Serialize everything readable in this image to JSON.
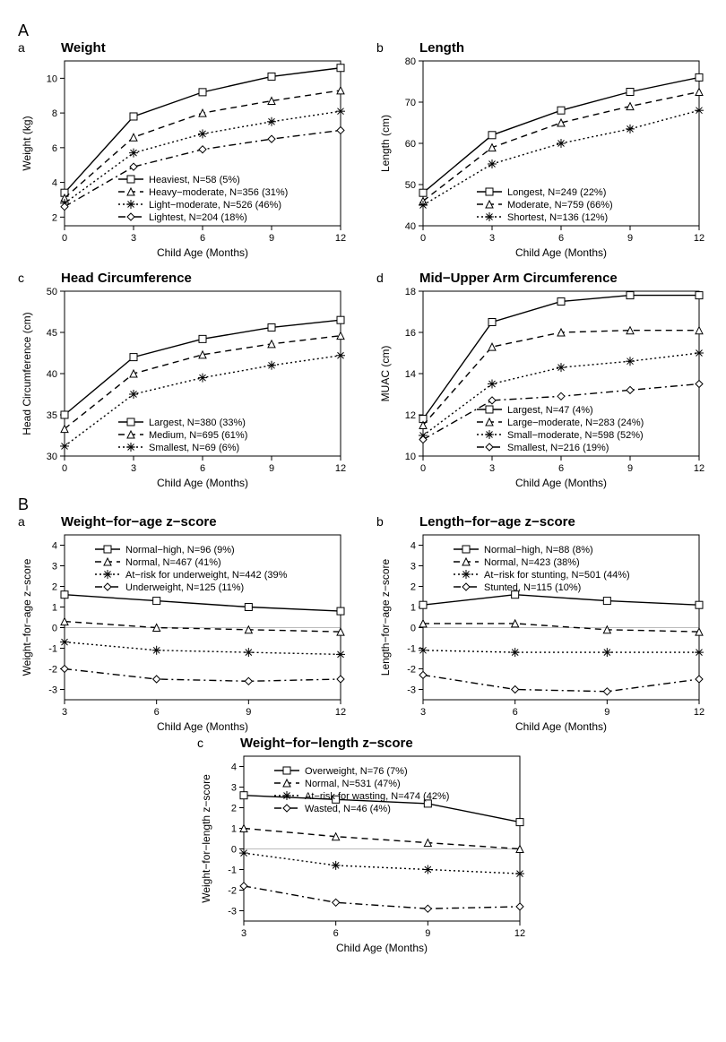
{
  "figure": {
    "sections": {
      "A_label": "A",
      "B_label": "B"
    }
  },
  "common": {
    "x_label": "Child Age (Months)",
    "axis_color": "#000000",
    "grid_color": "#bbbbbb",
    "line_color": "#000000",
    "tick_fontsize": 11,
    "axis_title_fontsize": 12,
    "title_fontsize": 15,
    "line_width": 1.4,
    "dash_patterns": {
      "solid": "",
      "dashed": "7 5",
      "dotted": "2 3",
      "dashdot": "8 4 2 4"
    },
    "markers": {
      "square": "square",
      "triangle": "triangle",
      "star": "star",
      "diamond": "diamond"
    }
  },
  "panels": {
    "Aa": {
      "letter": "a",
      "title": "Weight",
      "y_label": "Weight (kg)",
      "x": [
        0,
        3,
        6,
        9,
        12
      ],
      "xlim": [
        0,
        12
      ],
      "ylim": [
        1.5,
        11
      ],
      "yticks": [
        2,
        4,
        6,
        8,
        10
      ],
      "legend_pos": "bottom-right",
      "series": [
        {
          "label": "Heaviest, N=58 (5%)",
          "dash": "solid",
          "marker": "square",
          "y": [
            3.4,
            7.8,
            9.2,
            10.1,
            10.6
          ]
        },
        {
          "label": "Heavy−moderate, N=356 (31%)",
          "dash": "dashed",
          "marker": "triangle",
          "y": [
            3.1,
            6.6,
            8.0,
            8.7,
            9.3
          ]
        },
        {
          "label": "Light−moderate, N=526 (46%)",
          "dash": "dotted",
          "marker": "star",
          "y": [
            2.8,
            5.7,
            6.8,
            7.5,
            8.1
          ]
        },
        {
          "label": "Lightest, N=204 (18%)",
          "dash": "dashdot",
          "marker": "diamond",
          "y": [
            2.6,
            4.9,
            5.9,
            6.5,
            7.0
          ]
        }
      ]
    },
    "Ab": {
      "letter": "b",
      "title": "Length",
      "y_label": "Length (cm)",
      "x": [
        0,
        3,
        6,
        9,
        12
      ],
      "xlim": [
        0,
        12
      ],
      "ylim": [
        40,
        80
      ],
      "yticks": [
        40,
        50,
        60,
        70,
        80
      ],
      "legend_pos": "bottom-right",
      "series": [
        {
          "label": "Longest, N=249 (22%)",
          "dash": "solid",
          "marker": "square",
          "y": [
            48,
            62,
            68,
            72.5,
            76
          ]
        },
        {
          "label": "Moderate, N=759 (66%)",
          "dash": "dashed",
          "marker": "triangle",
          "y": [
            46,
            59,
            65,
            69,
            72.5
          ]
        },
        {
          "label": "Shortest, N=136 (12%)",
          "dash": "dotted",
          "marker": "star",
          "y": [
            45,
            55,
            60,
            63.5,
            68
          ]
        }
      ]
    },
    "Ac": {
      "letter": "c",
      "title": "Head Circumference",
      "y_label": "Head Circumference (cm)",
      "x": [
        0,
        3,
        6,
        9,
        12
      ],
      "xlim": [
        0,
        12
      ],
      "ylim": [
        30,
        50
      ],
      "yticks": [
        30,
        35,
        40,
        45,
        50
      ],
      "legend_pos": "bottom-right",
      "series": [
        {
          "label": "Largest, N=380 (33%)",
          "dash": "solid",
          "marker": "square",
          "y": [
            35,
            42,
            44.2,
            45.6,
            46.5
          ]
        },
        {
          "label": "Medium, N=695 (61%)",
          "dash": "dashed",
          "marker": "triangle",
          "y": [
            33.3,
            40,
            42.3,
            43.6,
            44.6
          ]
        },
        {
          "label": "Smallest, N=69 (6%)",
          "dash": "dotted",
          "marker": "star",
          "y": [
            31.2,
            37.5,
            39.5,
            41,
            42.2
          ]
        }
      ]
    },
    "Ad": {
      "letter": "d",
      "title": "Mid−Upper Arm Circumference",
      "y_label": "MUAC (cm)",
      "x": [
        0,
        3,
        6,
        9,
        12
      ],
      "xlim": [
        0,
        12
      ],
      "ylim": [
        10,
        18
      ],
      "yticks": [
        10,
        12,
        14,
        16,
        18
      ],
      "legend_pos": "bottom-right",
      "series": [
        {
          "label": "Largest, N=47 (4%)",
          "dash": "solid",
          "marker": "square",
          "y": [
            11.8,
            16.5,
            17.5,
            17.8,
            17.8
          ]
        },
        {
          "label": "Large−moderate, N=283 (24%)",
          "dash": "dashed",
          "marker": "triangle",
          "y": [
            11.5,
            15.3,
            16.0,
            16.1,
            16.1
          ]
        },
        {
          "label": "Small−moderate, N=598 (52%)",
          "dash": "dotted",
          "marker": "star",
          "y": [
            11.0,
            13.5,
            14.3,
            14.6,
            15.0
          ]
        },
        {
          "label": "Smallest, N=216 (19%)",
          "dash": "dashdot",
          "marker": "diamond",
          "y": [
            10.8,
            12.7,
            12.9,
            13.2,
            13.5
          ]
        }
      ]
    },
    "Ba": {
      "letter": "a",
      "title": "Weight−for−age z−score",
      "y_label": "Weight−for−age z−score",
      "x": [
        3,
        6,
        9,
        12
      ],
      "xlim": [
        3,
        12
      ],
      "ylim": [
        -3.5,
        4.5
      ],
      "yticks": [
        -3,
        -2,
        -1,
        0,
        1,
        2,
        3,
        4
      ],
      "zero_line": true,
      "legend_pos": "top-right",
      "series": [
        {
          "label": "Normal−high, N=96 (9%)",
          "dash": "solid",
          "marker": "square",
          "y": [
            1.6,
            1.3,
            1.0,
            0.8
          ]
        },
        {
          "label": "Normal, N=467 (41%)",
          "dash": "dashed",
          "marker": "triangle",
          "y": [
            0.3,
            0.0,
            -0.1,
            -0.2
          ]
        },
        {
          "label": "At−risk for underweight, N=442 (39%",
          "dash": "dotted",
          "marker": "star",
          "y": [
            -0.7,
            -1.1,
            -1.2,
            -1.3
          ]
        },
        {
          "label": "Underweight, N=125 (11%)",
          "dash": "dashdot",
          "marker": "diamond",
          "y": [
            -2.0,
            -2.5,
            -2.6,
            -2.5
          ]
        }
      ]
    },
    "Bb": {
      "letter": "b",
      "title": "Length−for−age z−score",
      "y_label": "Length−for−age z−score",
      "x": [
        3,
        6,
        9,
        12
      ],
      "xlim": [
        3,
        12
      ],
      "ylim": [
        -3.5,
        4.5
      ],
      "yticks": [
        -3,
        -2,
        -1,
        0,
        1,
        2,
        3,
        4
      ],
      "zero_line": true,
      "legend_pos": "top-right",
      "series": [
        {
          "label": "Normal−high, N=88 (8%)",
          "dash": "solid",
          "marker": "square",
          "y": [
            1.1,
            1.6,
            1.3,
            1.1
          ]
        },
        {
          "label": "Normal, N=423 (38%)",
          "dash": "dashed",
          "marker": "triangle",
          "y": [
            0.2,
            0.2,
            -0.1,
            -0.2
          ]
        },
        {
          "label": "At−risk for stunting, N=501 (44%)",
          "dash": "dotted",
          "marker": "star",
          "y": [
            -1.1,
            -1.2,
            -1.2,
            -1.2
          ]
        },
        {
          "label": "Stunted, N=115 (10%)",
          "dash": "dashdot",
          "marker": "diamond",
          "y": [
            -2.3,
            -3.0,
            -3.1,
            -2.5
          ]
        }
      ]
    },
    "Bc": {
      "letter": "c",
      "title": "Weight−for−length z−score",
      "y_label": "Weight−for−length z−score",
      "x": [
        3,
        6,
        9,
        12
      ],
      "xlim": [
        3,
        12
      ],
      "ylim": [
        -3.5,
        4.5
      ],
      "yticks": [
        -3,
        -2,
        -1,
        0,
        1,
        2,
        3,
        4
      ],
      "zero_line": true,
      "legend_pos": "top-right",
      "series": [
        {
          "label": "Overweight, N=76 (7%)",
          "dash": "solid",
          "marker": "square",
          "y": [
            2.6,
            2.4,
            2.2,
            1.3
          ]
        },
        {
          "label": "Normal, N=531 (47%)",
          "dash": "dashed",
          "marker": "triangle",
          "y": [
            1.0,
            0.6,
            0.3,
            0.0
          ]
        },
        {
          "label": "At−risk for wasting, N=474 (42%)",
          "dash": "dotted",
          "marker": "star",
          "y": [
            -0.2,
            -0.8,
            -1.0,
            -1.2
          ]
        },
        {
          "label": "Wasted, N=46 (4%)",
          "dash": "dashdot",
          "marker": "diamond",
          "y": [
            -1.8,
            -2.6,
            -2.9,
            -2.8
          ]
        }
      ]
    }
  }
}
